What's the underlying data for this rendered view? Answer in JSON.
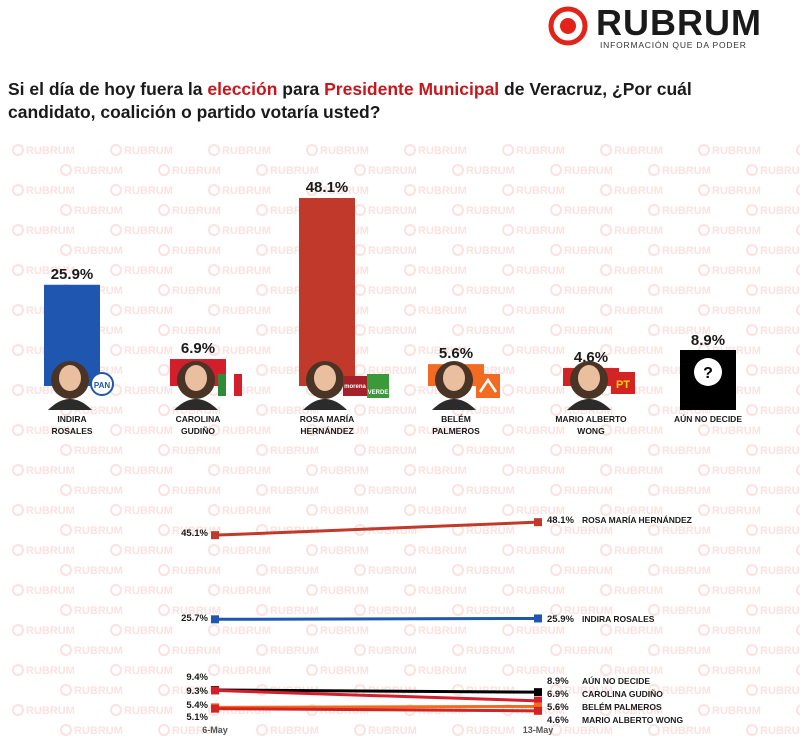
{
  "brand": {
    "name": "RUBRUM",
    "tagline": "INFORMACIÓN QUE DA PODER",
    "watermark_text": "RUBRUM",
    "accent": "#e2231a"
  },
  "question": {
    "part1": "Si el día de hoy fuera la ",
    "highlight1": "elección",
    "part2": " para ",
    "highlight2": "Presidente Municipal",
    "part3": " de Veracruz, ¿Por cuál candidato, coalición o partido votaría usted?"
  },
  "chart_data": [
    {
      "type": "bar",
      "categories": [
        "INDIRA ROSALES",
        "CAROLINA GUDIÑO",
        "ROSA MARÍA HERNÁNDEZ",
        "BELÉM PALMEROS",
        "MARIO ALBERTO WONG",
        "AÚN NO DECIDE"
      ],
      "category_lines": [
        [
          "INDIRA",
          "ROSALES"
        ],
        [
          "CAROLINA",
          "GUDIÑO"
        ],
        [
          "ROSA MARÍA",
          "HERNÁNDEZ"
        ],
        [
          "BELÉM",
          "PALMEROS"
        ],
        [
          "MARIO ALBERTO",
          "WONG"
        ],
        [
          "AÚN NO DECIDE"
        ]
      ],
      "values": [
        25.9,
        6.9,
        48.1,
        5.6,
        4.6,
        8.9
      ],
      "value_labels": [
        "25.9%",
        "6.9%",
        "48.1%",
        "5.6%",
        "4.6%",
        "8.9%"
      ],
      "colors": [
        "#1e56b0",
        "#d21f2b",
        "#c0392b",
        "#f26b21",
        "#d32424",
        "#111111"
      ],
      "party_badges": [
        "PAN",
        "PRI",
        "morena / VERDE",
        "MC",
        "PT",
        ""
      ],
      "grid": false,
      "legend": "none"
    },
    {
      "type": "line",
      "x": [
        "6-May",
        "13-May"
      ],
      "series": [
        {
          "name": "ROSA MARÍA HERNÁNDEZ",
          "values": [
            45.1,
            48.1
          ],
          "labels": [
            "45.1%",
            "48.1%"
          ],
          "color": "#c0392b"
        },
        {
          "name": "INDIRA ROSALES",
          "values": [
            25.7,
            25.9
          ],
          "labels": [
            "25.7%",
            "25.9%"
          ],
          "color": "#1e56b0"
        },
        {
          "name": "AÚN NO DECIDE",
          "values": [
            9.4,
            8.9
          ],
          "labels": [
            "9.4%",
            "8.9%"
          ],
          "color": "#000000"
        },
        {
          "name": "CAROLINA GUDIÑO",
          "values": [
            9.3,
            6.9
          ],
          "labels": [
            "9.3%",
            "6.9%"
          ],
          "color": "#d21f2b"
        },
        {
          "name": "BELÉM PALMEROS",
          "values": [
            5.4,
            5.6
          ],
          "labels": [
            "5.4%",
            "5.6%"
          ],
          "color": "#f26b21"
        },
        {
          "name": "MARIO ALBERTO WONG",
          "values": [
            5.1,
            4.6
          ],
          "labels": [
            "5.1%",
            "4.6%"
          ],
          "color": "#d32424"
        }
      ],
      "grid": false,
      "legend": "right"
    }
  ]
}
